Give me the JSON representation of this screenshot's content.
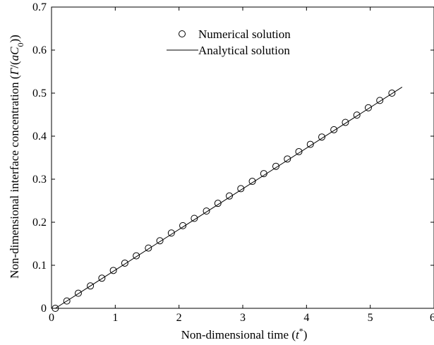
{
  "chart_data": {
    "type": "line",
    "xlabel": "Non-dimensional time (t*)",
    "xlabel_parts": {
      "pre": "Non-dimensional time (",
      "var": "t",
      "sup": "*",
      "post": ")"
    },
    "ylabel": "Non-dimensional interface concentration (Γ/(aC0))",
    "ylabel_parts": {
      "pre": "Non-dimensional interface concentration (",
      "gamma": "Γ",
      "mid": "/(",
      "a": "a",
      "c": "C",
      "sub": "0",
      "post": "))"
    },
    "xlim": [
      0,
      6
    ],
    "ylim": [
      0,
      0.7
    ],
    "xticks": [
      0,
      1,
      2,
      3,
      4,
      5,
      6
    ],
    "yticks": [
      0,
      0.1,
      0.2,
      0.3,
      0.4,
      0.5,
      0.6,
      0.7
    ],
    "legend": {
      "position": "top-center"
    },
    "grid": false,
    "series": [
      {
        "name": "Numerical solution",
        "marker": "open-circle",
        "x": [
          0.06,
          0.24,
          0.42,
          0.61,
          0.79,
          0.97,
          1.15,
          1.33,
          1.52,
          1.7,
          1.88,
          2.06,
          2.24,
          2.43,
          2.61,
          2.79,
          2.97,
          3.15,
          3.33,
          3.52,
          3.7,
          3.88,
          4.06,
          4.24,
          4.43,
          4.61,
          4.79,
          4.97,
          5.15,
          5.34
        ],
        "y": [
          0.0,
          0.017,
          0.035,
          0.052,
          0.07,
          0.088,
          0.105,
          0.122,
          0.14,
          0.157,
          0.175,
          0.192,
          0.209,
          0.226,
          0.244,
          0.261,
          0.278,
          0.295,
          0.313,
          0.33,
          0.347,
          0.364,
          0.381,
          0.398,
          0.415,
          0.432,
          0.449,
          0.466,
          0.483,
          0.5
        ]
      },
      {
        "name": "Analytical solution",
        "marker": "line",
        "x": [
          0.06,
          5.5
        ],
        "y": [
          0.0,
          0.514
        ]
      }
    ]
  }
}
